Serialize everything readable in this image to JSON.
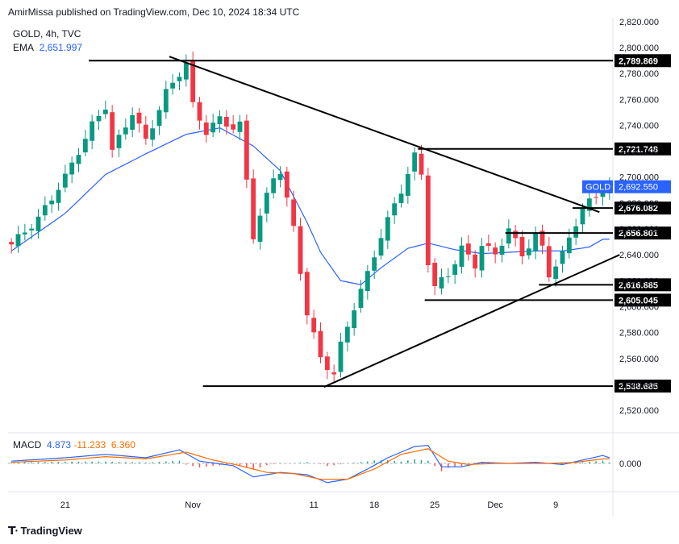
{
  "header": {
    "text": "AmirMissa published on TradingView.com, Dec 10, 2024 18:34 UTC"
  },
  "legend": {
    "symbol": "GOLD, 4h, TVC",
    "ema_label": "EMA",
    "ema_value": "2,651.997"
  },
  "macd_legend": {
    "label": "MACD",
    "v1": "4.873",
    "v2": "-11.233",
    "v3": "6.360"
  },
  "footer": {
    "brand": "TradingView"
  },
  "colors": {
    "up": "#089981",
    "down": "#f23645",
    "ema": "#2962ff",
    "signal": "#ff6d00",
    "price_tag": "#2962ff"
  },
  "chart_data": {
    "type": "candlestick",
    "symbol": "GOLD",
    "timeframe": "4h",
    "y_ticks": [
      2520,
      2540,
      2560,
      2580,
      2600,
      2620,
      2640,
      2660,
      2680,
      2700,
      2720,
      2740,
      2760,
      2780,
      2800,
      2820
    ],
    "y_tick_labels": [
      "2,520.000",
      "2,540.000",
      "2,560.000",
      "2,580.000",
      "2,600.000",
      "2,620.000",
      "2,640.000",
      "2,660.000",
      "2,680.000",
      "2,700.000",
      "2,720.000",
      "2,740.000",
      "2,760.000",
      "2,780.000",
      "2,800.000",
      "2,820.000"
    ],
    "ylim": [
      2507,
      2823
    ],
    "x_tick_labels": [
      "21",
      "Nov",
      "11",
      "18",
      "25",
      "Dec",
      "9"
    ],
    "x_tick_index": [
      8,
      27,
      45,
      54,
      63,
      72,
      81
    ],
    "n_bars": 90,
    "price_anchors": [
      [
        0,
        2648
      ],
      [
        4,
        2668
      ],
      [
        8,
        2700
      ],
      [
        12,
        2740
      ],
      [
        14,
        2755
      ],
      [
        15,
        2720
      ],
      [
        18,
        2750
      ],
      [
        20,
        2728
      ],
      [
        23,
        2765
      ],
      [
        26,
        2788
      ],
      [
        27,
        2755
      ],
      [
        29,
        2735
      ],
      [
        31,
        2745
      ],
      [
        33,
        2738
      ],
      [
        34,
        2740
      ],
      [
        36,
        2655
      ],
      [
        39,
        2700
      ],
      [
        40,
        2705
      ],
      [
        42,
        2660
      ],
      [
        44,
        2595
      ],
      [
        46,
        2560
      ],
      [
        48,
        2548
      ],
      [
        49,
        2570
      ],
      [
        51,
        2600
      ],
      [
        53,
        2625
      ],
      [
        55,
        2655
      ],
      [
        58,
        2690
      ],
      [
        60,
        2716
      ],
      [
        61,
        2702
      ],
      [
        62,
        2635
      ],
      [
        63,
        2615
      ],
      [
        65,
        2625
      ],
      [
        67,
        2645
      ],
      [
        69,
        2632
      ],
      [
        70,
        2648
      ],
      [
        72,
        2640
      ],
      [
        74,
        2660
      ],
      [
        76,
        2640
      ],
      [
        78,
        2655
      ],
      [
        79,
        2645
      ],
      [
        80,
        2625
      ],
      [
        82,
        2640
      ],
      [
        84,
        2665
      ],
      [
        85,
        2676
      ],
      [
        87,
        2685
      ],
      [
        88,
        2692
      ]
    ],
    "ema_anchors": [
      [
        0,
        2643
      ],
      [
        8,
        2672
      ],
      [
        14,
        2702
      ],
      [
        20,
        2718
      ],
      [
        26,
        2733
      ],
      [
        31,
        2738
      ],
      [
        36,
        2724
      ],
      [
        40,
        2705
      ],
      [
        44,
        2665
      ],
      [
        46,
        2642
      ],
      [
        49,
        2620
      ],
      [
        52,
        2617
      ],
      [
        55,
        2630
      ],
      [
        59,
        2645
      ],
      [
        62,
        2649
      ],
      [
        66,
        2644
      ],
      [
        70,
        2641
      ],
      [
        74,
        2642
      ],
      [
        78,
        2643
      ],
      [
        82,
        2643
      ],
      [
        86,
        2646
      ],
      [
        88,
        2652
      ]
    ],
    "hlines": [
      {
        "value": 2789.869,
        "label": "2,789.869",
        "from": 12,
        "to": 90
      },
      {
        "value": 2721.748,
        "label": "2,721.748",
        "from": 61,
        "to": 90
      },
      {
        "value": 2676.082,
        "label": "2,676.082",
        "from": 84,
        "to": 90
      },
      {
        "value": 2656.801,
        "label": "2,656.801",
        "from": 74,
        "to": 90
      },
      {
        "value": 2616.885,
        "label": "2,616.885",
        "from": 79,
        "to": 90
      },
      {
        "value": 2605.045,
        "label": "2,605.045",
        "from": 62,
        "to": 90
      },
      {
        "value": 2538.685,
        "label": "2,538.685",
        "from": 29,
        "to": 90
      }
    ],
    "trendlines": [
      {
        "x1": 24,
        "y1": 2793,
        "x2": 88,
        "y2": 2673
      },
      {
        "x1": 47,
        "y1": 2538,
        "x2": 91,
        "y2": 2640
      }
    ],
    "current_price": {
      "label": "GOLD",
      "value": 2692.55,
      "value_label": "2,692.550"
    },
    "macd": {
      "zero_label": "0.000",
      "ylim": [
        -25,
        25
      ],
      "macd_anchors": [
        [
          0,
          2
        ],
        [
          8,
          5
        ],
        [
          14,
          8
        ],
        [
          20,
          5
        ],
        [
          25,
          12
        ],
        [
          28,
          2
        ],
        [
          33,
          -2
        ],
        [
          36,
          -12
        ],
        [
          40,
          -8
        ],
        [
          44,
          -10
        ],
        [
          47,
          -17
        ],
        [
          50,
          -14
        ],
        [
          53,
          -5
        ],
        [
          56,
          5
        ],
        [
          60,
          15
        ],
        [
          62,
          16
        ],
        [
          64,
          -3
        ],
        [
          67,
          -3
        ],
        [
          70,
          1
        ],
        [
          74,
          0
        ],
        [
          78,
          1
        ],
        [
          82,
          -1
        ],
        [
          85,
          3
        ],
        [
          88,
          7
        ],
        [
          89,
          5
        ]
      ],
      "signal_anchors": [
        [
          0,
          1
        ],
        [
          8,
          3
        ],
        [
          14,
          6
        ],
        [
          20,
          4
        ],
        [
          26,
          10
        ],
        [
          30,
          3
        ],
        [
          34,
          -2
        ],
        [
          38,
          -8
        ],
        [
          42,
          -9
        ],
        [
          46,
          -14
        ],
        [
          50,
          -14
        ],
        [
          54,
          -5
        ],
        [
          58,
          8
        ],
        [
          62,
          13
        ],
        [
          65,
          2
        ],
        [
          68,
          -1
        ],
        [
          72,
          0
        ],
        [
          76,
          0
        ],
        [
          80,
          0
        ],
        [
          84,
          1
        ],
        [
          88,
          4
        ],
        [
          89,
          4
        ]
      ]
    }
  }
}
